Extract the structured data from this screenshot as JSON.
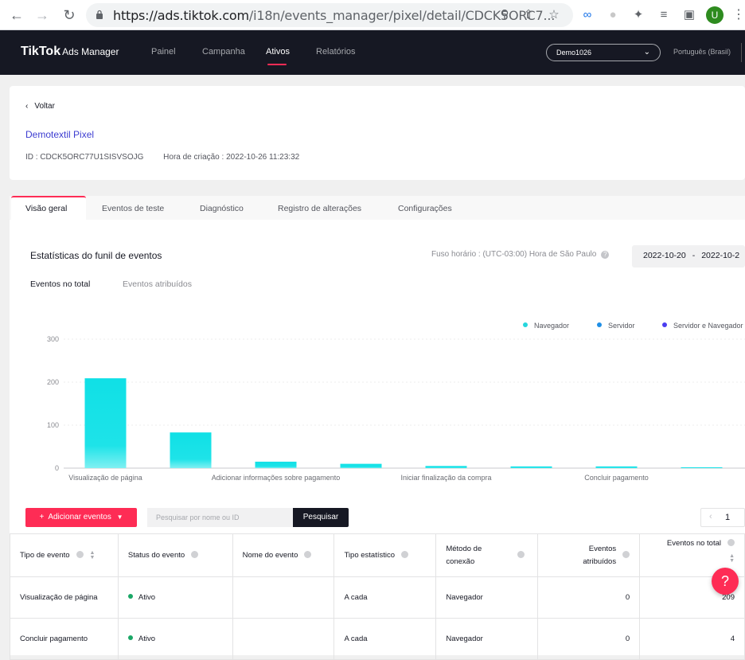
{
  "browser": {
    "url_host": "https://ads.tiktok.com",
    "url_path": "/i18n/events_manager/pixel/detail/CDCK5ORC7...",
    "avatar_letter": "U"
  },
  "topnav": {
    "logo": "TikTok",
    "logo_sub": "Ads Manager",
    "items": [
      "Painel",
      "Campanha",
      "Ativos",
      "Relatórios"
    ],
    "active_index": 2,
    "account": "Demo1026",
    "language": "Português (Brasil)"
  },
  "header": {
    "back_label": "Voltar",
    "pixel_name": "Demotextil Pixel",
    "id_text": "ID : CDCK5ORC77U1SISVSOJG",
    "created_text": "Hora de criação : 2022-10-26 11:23:32"
  },
  "tabs": [
    "Visão geral",
    "Eventos de teste",
    "Diagnóstico",
    "Registro de alterações",
    "Configurações"
  ],
  "overview": {
    "title": "Estatísticas do funil de eventos",
    "timezone": "Fuso horário : (UTC-03:00) Hora de São Paulo",
    "date_from": "2022-10-20",
    "date_sep": "-",
    "date_to": "2022-10-2",
    "subtabs": [
      "Eventos no total",
      "Eventos atribuídos"
    ]
  },
  "chart_data": {
    "type": "bar",
    "categories": [
      "Visualização de página",
      "",
      "Adicionar informações sobre pagamento",
      "",
      "Iniciar finalização da compra",
      "",
      "Concluir pagamento",
      ""
    ],
    "series": [
      {
        "name": "Navegador",
        "values": [
          209,
          83,
          15,
          10,
          5,
          4,
          4,
          2
        ]
      }
    ],
    "legend": [
      "Navegador",
      "Servidor",
      "Servidor e Navegador"
    ],
    "legend_colors": [
      "#25d6dd",
      "#1f8fe6",
      "#4b3df0"
    ],
    "yticks": [
      300,
      200,
      100,
      0
    ],
    "ylim": [
      0,
      300
    ],
    "grid": true,
    "legend_position": "top-right"
  },
  "toolbar": {
    "add_events": "Adicionar eventos",
    "search_placeholder": "Pesquisar por nome ou ID",
    "search_button": "Pesquisar",
    "page": "1"
  },
  "table": {
    "headers": [
      "Tipo de evento",
      "Status do evento",
      "Nome do evento",
      "Tipo estatístico",
      "Método de conexão",
      "Eventos atribuídos",
      "Eventos no total"
    ],
    "rows": [
      [
        "Visualização de página",
        "Ativo",
        "",
        "A cada",
        "Navegador",
        "0",
        "209"
      ],
      [
        "Concluir pagamento",
        "Ativo",
        "",
        "A cada",
        "Navegador",
        "0",
        "4"
      ]
    ]
  }
}
